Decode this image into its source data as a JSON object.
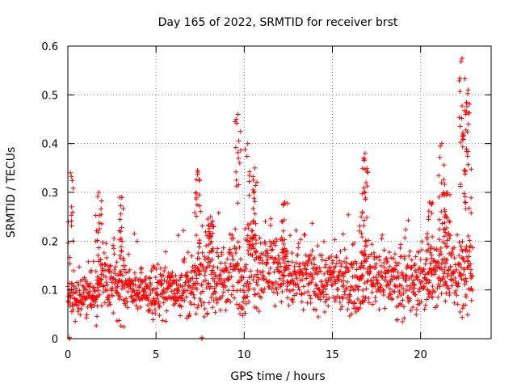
{
  "chart_data": {
    "type": "scatter",
    "title": "Day 165 of 2022, SRMTID for receiver brst",
    "xlabel": "GPS time / hours",
    "ylabel": "SRMTID / TECUs",
    "xlim": [
      0,
      24
    ],
    "ylim": [
      0,
      0.6
    ],
    "xticks": [
      "0",
      "5",
      "10",
      "15",
      "20"
    ],
    "yticks": [
      "0",
      "0.1",
      "0.2",
      "0.3",
      "0.4",
      "0.5",
      "0.6"
    ],
    "grid": true,
    "marker": "+",
    "color": "#ff0000",
    "series_profile": {
      "name": "SRMTID",
      "time_hours": [
        0.0,
        0.5,
        1.0,
        1.5,
        2.0,
        2.5,
        3.0,
        3.5,
        4.0,
        4.5,
        5.0,
        5.5,
        6.0,
        6.5,
        7.0,
        7.5,
        8.0,
        8.5,
        9.0,
        9.5,
        10.0,
        10.5,
        11.0,
        11.5,
        12.0,
        12.5,
        13.0,
        13.5,
        14.0,
        14.5,
        15.0,
        15.5,
        16.0,
        16.5,
        17.0,
        17.5,
        18.0,
        18.5,
        19.0,
        19.5,
        20.0,
        20.5,
        21.0,
        21.5,
        22.0,
        22.5,
        23.0
      ],
      "median_tecu": [
        0.08,
        0.08,
        0.085,
        0.09,
        0.12,
        0.11,
        0.1,
        0.11,
        0.1,
        0.09,
        0.1,
        0.1,
        0.1,
        0.11,
        0.1,
        0.12,
        0.13,
        0.12,
        0.12,
        0.14,
        0.12,
        0.16,
        0.14,
        0.15,
        0.15,
        0.12,
        0.12,
        0.13,
        0.12,
        0.12,
        0.12,
        0.11,
        0.12,
        0.11,
        0.14,
        0.13,
        0.13,
        0.12,
        0.11,
        0.11,
        0.12,
        0.13,
        0.13,
        0.15,
        0.15,
        0.14,
        0.13
      ],
      "spread_tecu": [
        0.025,
        0.025,
        0.03,
        0.03,
        0.05,
        0.03,
        0.04,
        0.03,
        0.025,
        0.025,
        0.03,
        0.03,
        0.03,
        0.04,
        0.035,
        0.04,
        0.045,
        0.04,
        0.045,
        0.05,
        0.05,
        0.06,
        0.05,
        0.045,
        0.045,
        0.045,
        0.045,
        0.04,
        0.04,
        0.04,
        0.035,
        0.035,
        0.04,
        0.035,
        0.04,
        0.04,
        0.04,
        0.04,
        0.04,
        0.04,
        0.04,
        0.045,
        0.045,
        0.05,
        0.05,
        0.05,
        0.045
      ]
    },
    "peaks": [
      {
        "time_hours": 0.15,
        "max_tecu": 0.34
      },
      {
        "time_hours": 1.75,
        "max_tecu": 0.3
      },
      {
        "time_hours": 3.05,
        "max_tecu": 0.29
      },
      {
        "time_hours": 7.35,
        "max_tecu": 0.345
      },
      {
        "time_hours": 8.1,
        "max_tecu": 0.25
      },
      {
        "time_hours": 9.65,
        "max_tecu": 0.46
      },
      {
        "time_hours": 10.2,
        "max_tecu": 0.4
      },
      {
        "time_hours": 10.6,
        "max_tecu": 0.35
      },
      {
        "time_hours": 12.3,
        "max_tecu": 0.28
      },
      {
        "time_hours": 16.85,
        "max_tecu": 0.38
      },
      {
        "time_hours": 16.7,
        "max_tecu": 0.26
      },
      {
        "time_hours": 20.5,
        "max_tecu": 0.28
      },
      {
        "time_hours": 21.2,
        "max_tecu": 0.4
      },
      {
        "time_hours": 21.5,
        "max_tecu": 0.3
      },
      {
        "time_hours": 22.35,
        "max_tecu": 0.575
      },
      {
        "time_hours": 22.7,
        "max_tecu": 0.51
      },
      {
        "time_hours": 22.55,
        "max_tecu": 0.46
      }
    ],
    "zero_points": [
      {
        "time_hours": 0.1,
        "tecu": 0.0
      },
      {
        "time_hours": 7.6,
        "tecu": 0.0
      }
    ]
  }
}
